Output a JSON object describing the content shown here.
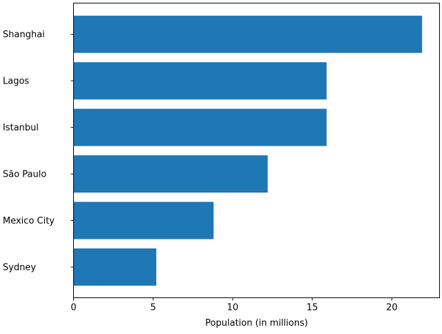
{
  "chart_data": {
    "type": "bar",
    "orientation": "horizontal",
    "categories": [
      "Shanghai",
      "Lagos",
      "Istanbul",
      "São Paulo",
      "Mexico City",
      "Sydney"
    ],
    "values": [
      21.9,
      15.9,
      15.9,
      12.2,
      8.8,
      5.2
    ],
    "xlabel": "Population (in millions)",
    "ylabel": "",
    "title": "",
    "xlim": [
      0,
      23
    ],
    "xticks": [
      0,
      5,
      10,
      15,
      20
    ],
    "grid": false,
    "bar_color": "#1f77b4"
  }
}
